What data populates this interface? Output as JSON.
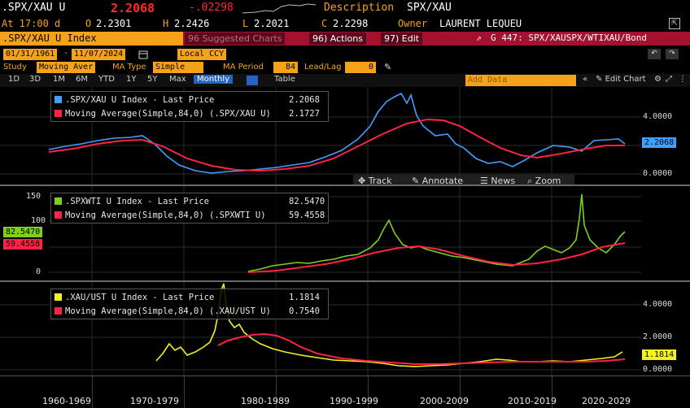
{
  "header": {
    "ticker": ".SPX/XAU U",
    "last_price": "2.2068",
    "change": "-.02298",
    "desc_label": "Description",
    "desc_value": "SPX/XAU",
    "at_label": "At 17:00 d",
    "open_label": "O",
    "open_value": "2.2301",
    "high_label": "H",
    "high_value": "2.2426",
    "low_label": "L",
    "low_value": "2.2021",
    "close_label": "C",
    "close_value": "2.2298",
    "owner_label": "Owner",
    "owner_value": "LAURENT LEQUEU"
  },
  "toolbar": {
    "index_title": ".SPX/XAU U Index",
    "suggested_charts": "96 Suggested Charts",
    "actions": "96) Actions",
    "edit": "97) Edit",
    "chart_name": "G 447: SPX/XAUSPX/WTIXAU/Bond"
  },
  "range": {
    "start": "01/31/1961",
    "end": "11/07/2024",
    "currency": "Local CCY"
  },
  "study_row": {
    "study_label": "Study",
    "study_value": "Moving Aver",
    "ma_type_label": "MA Type",
    "ma_type_value": "Simple",
    "ma_period_label": "MA Period",
    "ma_period_value": "84",
    "leadlag_label": "Lead/Lag",
    "leadlag_value": "0"
  },
  "periods": {
    "items": [
      "1D",
      "3D",
      "1M",
      "6M",
      "YTD",
      "1Y",
      "5Y",
      "Max"
    ],
    "frequency": "Monthly",
    "table": "Table",
    "add_data": "Add Data",
    "edit_chart": "Edit Chart"
  },
  "chart_tools": {
    "track": "Track",
    "annotate": "Annotate",
    "news": "News",
    "zoom": "Zoom"
  },
  "colors": {
    "blue": "#3fa0ff",
    "red": "#ff2244",
    "green": "#7cd11a",
    "yellow": "#f2f21c",
    "orange": "#f5a21b"
  },
  "panels": [
    {
      "series_label": ".SPX/XAU U Index - Last Price",
      "series_value": "2.2068",
      "ma_label": "Moving Average(Simple,84,0) (.SPX/XAU U)",
      "ma_value": "2.1727",
      "axis": [
        "4.0000",
        "2.0000",
        "0.0000"
      ],
      "tag": "2.2068"
    },
    {
      "series_label": ".SPXWTI U Index - Last Price",
      "series_value": "82.5470",
      "ma_label": "Moving Average(Simple,84,0) (.SPXWTI U)",
      "ma_value": "59.4558",
      "axis": [
        "150",
        "100",
        "50",
        "0"
      ],
      "tag_a": "82.5470",
      "tag_b": "59.4558"
    },
    {
      "series_label": ".XAU/UST U Index - Last Price",
      "series_value": "1.1814",
      "ma_label": "Moving Average(Simple,84,0) (.XAU/UST U)",
      "ma_value": "0.7540",
      "axis": [
        "4.0000",
        "2.0000",
        "0.0000"
      ],
      "tag": "1.1814"
    }
  ],
  "x_axis": [
    "1960-1969",
    "1970-1979",
    "1980-1989",
    "1990-1999",
    "2000-2009",
    "2010-2019",
    "2020-2029"
  ]
}
